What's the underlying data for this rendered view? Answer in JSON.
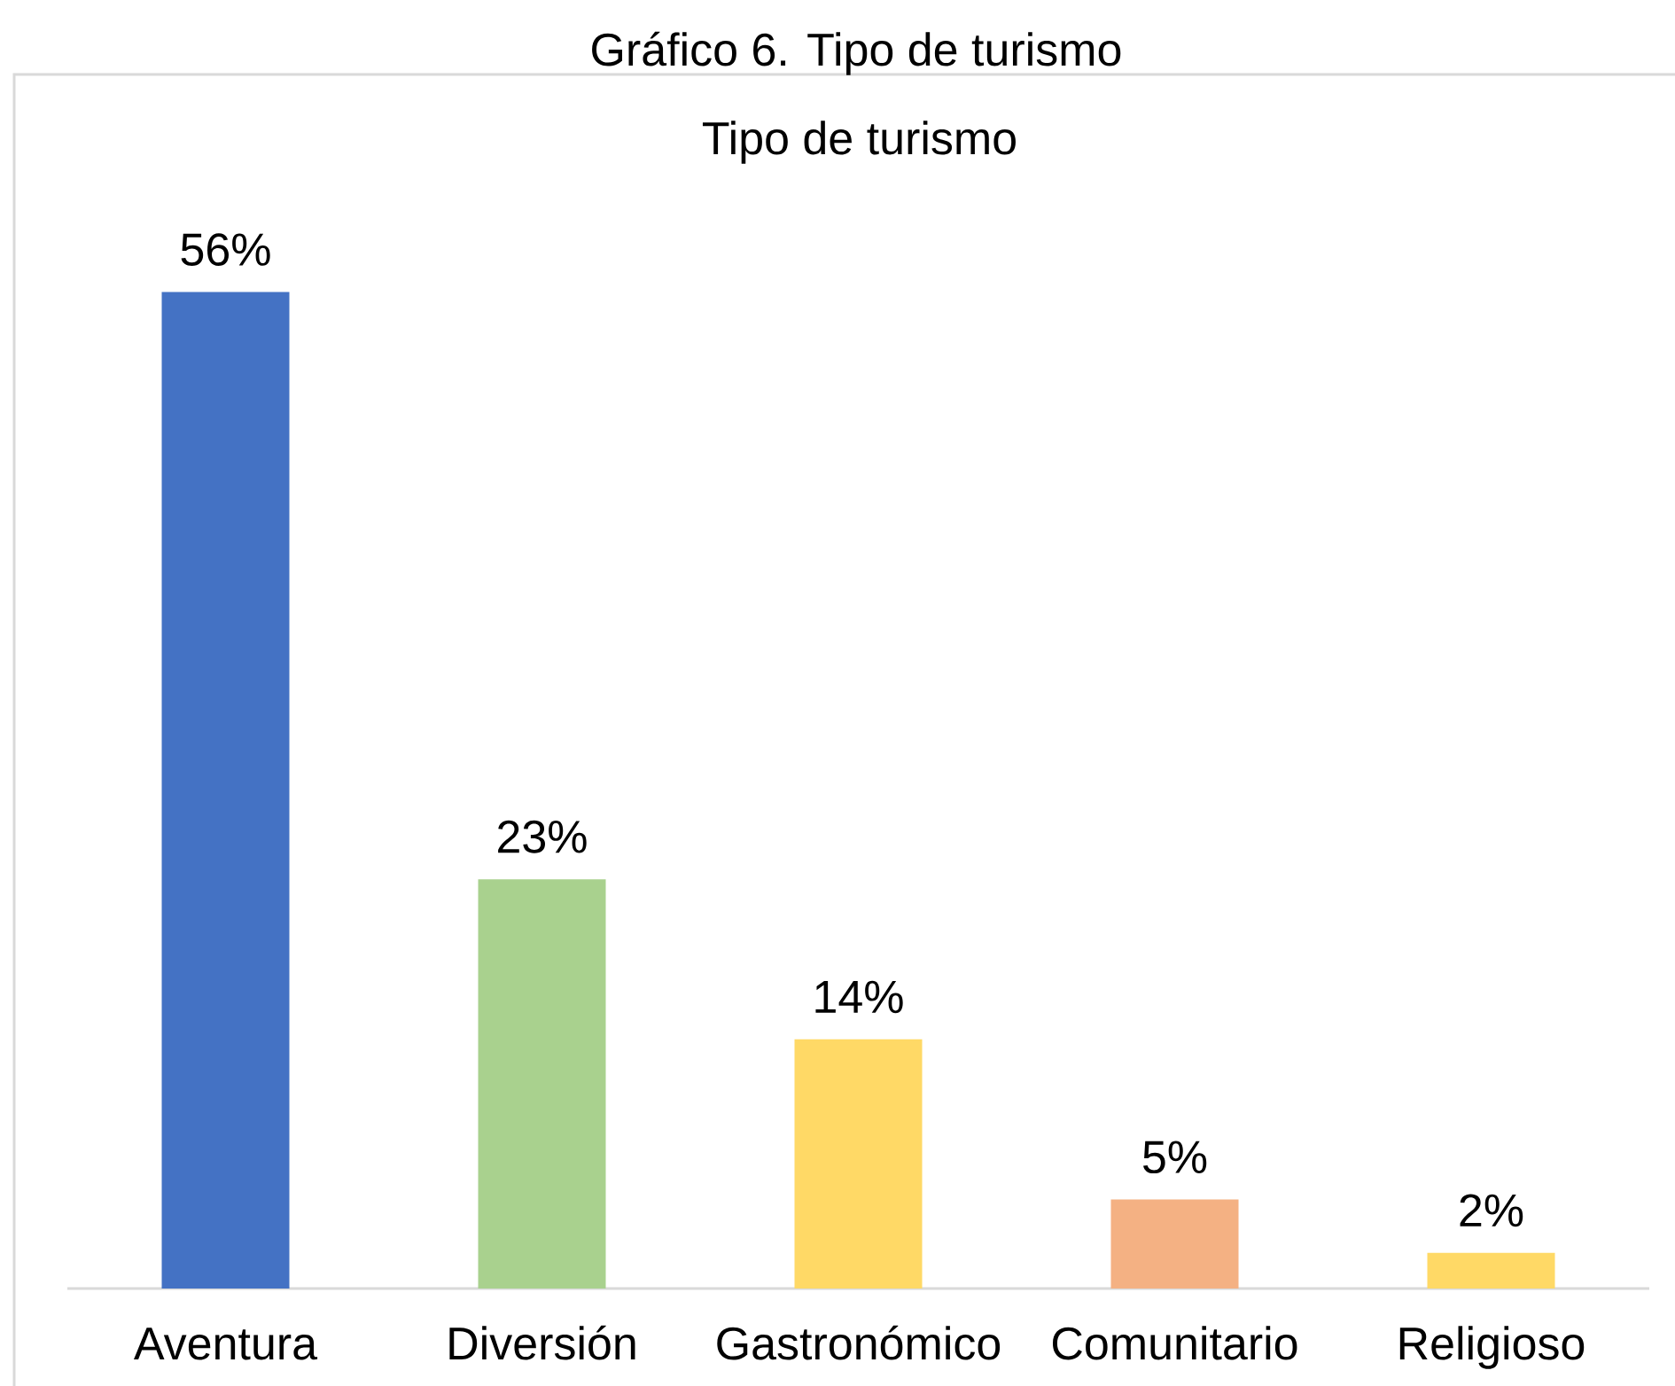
{
  "chart_data": {
    "type": "bar",
    "title": "Tipo de turismo",
    "annotations": [
      "Gráfico 6. Tipo de turismo"
    ],
    "categories": [
      "Aventura",
      "Diversión",
      "Gastronómico",
      "Comunitario",
      "Religioso"
    ],
    "values": [
      56,
      23,
      14,
      5,
      2
    ],
    "value_labels": [
      "56%",
      "23%",
      "14%",
      "5%",
      "2%"
    ],
    "colors": [
      "#4472c4",
      "#a9d18e",
      "#ffd966",
      "#f4b183",
      "#ffd966"
    ]
  }
}
